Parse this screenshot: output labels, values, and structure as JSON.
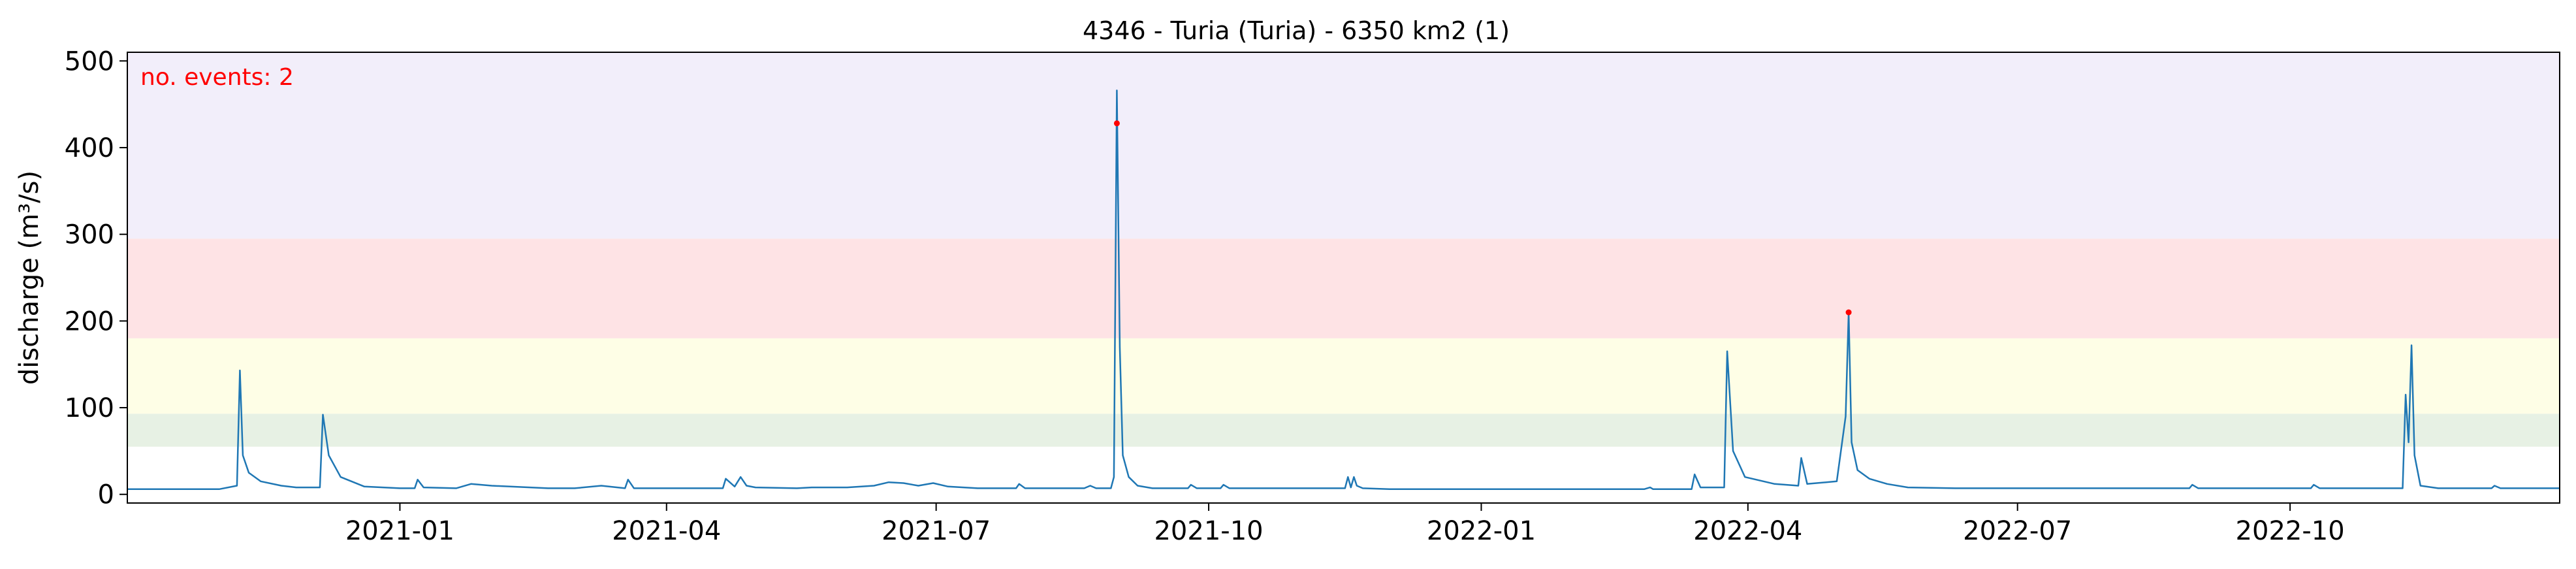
{
  "chart_data": {
    "type": "line",
    "title": "4346 - Turia (Turia) - 6350 km2 (1)",
    "xlabel": "",
    "ylabel": "discharge (m³/s)",
    "annotation": "no. events: 2",
    "xlim": [
      "2020-10-01",
      "2022-12-31"
    ],
    "ylim": [
      -10,
      510
    ],
    "x_ticks": [
      "2021-01",
      "2021-04",
      "2021-07",
      "2021-10",
      "2022-01",
      "2022-04",
      "2022-07",
      "2022-10"
    ],
    "y_ticks": [
      0,
      100,
      200,
      300,
      400,
      500
    ],
    "grid": false,
    "threshold_bands": [
      {
        "from": 55,
        "to": 93,
        "color": "#e7f1e4"
      },
      {
        "from": 93,
        "to": 180,
        "color": "#fefee6"
      },
      {
        "from": 180,
        "to": 295,
        "color": "#fee3e5"
      },
      {
        "from": 295,
        "to": 510,
        "color": "#f2eefa"
      }
    ],
    "series": [
      {
        "color": "#1f77b4",
        "x": [
          "2020-10-01",
          "2020-11-01",
          "2020-11-07",
          "2020-11-08",
          "2020-11-09",
          "2020-11-11",
          "2020-11-15",
          "2020-11-22",
          "2020-11-27",
          "2020-12-05",
          "2020-12-06",
          "2020-12-08",
          "2020-12-12",
          "2020-12-20",
          "2021-01-01",
          "2021-01-06",
          "2021-01-07",
          "2021-01-09",
          "2021-01-20",
          "2021-01-25",
          "2021-02-01",
          "2021-02-20",
          "2021-03-01",
          "2021-03-10",
          "2021-03-18",
          "2021-03-19",
          "2021-03-21",
          "2021-04-15",
          "2021-04-20",
          "2021-04-21",
          "2021-04-24",
          "2021-04-26",
          "2021-04-28",
          "2021-05-01",
          "2021-05-15",
          "2021-05-20",
          "2021-06-01",
          "2021-06-10",
          "2021-06-15",
          "2021-06-20",
          "2021-06-25",
          "2021-06-30",
          "2021-07-05",
          "2021-07-15",
          "2021-07-28",
          "2021-07-29",
          "2021-07-31",
          "2021-08-10",
          "2021-08-20",
          "2021-08-22",
          "2021-08-24",
          "2021-08-29",
          "2021-08-30",
          "2021-08-31",
          "2021-09-01",
          "2021-09-02",
          "2021-09-04",
          "2021-09-07",
          "2021-09-12",
          "2021-09-18",
          "2021-09-24",
          "2021-09-25",
          "2021-09-27",
          "2021-10-05",
          "2021-10-06",
          "2021-10-08",
          "2021-10-15",
          "2021-11-01",
          "2021-11-16",
          "2021-11-17",
          "2021-11-18",
          "2021-11-19",
          "2021-11-20",
          "2021-11-22",
          "2021-12-01",
          "2022-02-25",
          "2022-02-27",
          "2022-02-28",
          "2022-03-02",
          "2022-03-10",
          "2022-03-13",
          "2022-03-14",
          "2022-03-16",
          "2022-03-20",
          "2022-03-24",
          "2022-03-25",
          "2022-03-27",
          "2022-03-31",
          "2022-04-10",
          "2022-04-18",
          "2022-04-19",
          "2022-04-21",
          "2022-05-01",
          "2022-05-04",
          "2022-05-05",
          "2022-05-06",
          "2022-05-08",
          "2022-05-12",
          "2022-05-18",
          "2022-05-25",
          "2022-06-10",
          "2022-07-01",
          "2022-08-28",
          "2022-08-29",
          "2022-08-31",
          "2022-09-30",
          "2022-10-08",
          "2022-10-09",
          "2022-10-11",
          "2022-11-08",
          "2022-11-09",
          "2022-11-10",
          "2022-11-11",
          "2022-11-12",
          "2022-11-14",
          "2022-11-20",
          "2022-12-01",
          "2022-12-08",
          "2022-12-09",
          "2022-12-11",
          "2022-12-31"
        ],
        "y": [
          6,
          6,
          10,
          143,
          45,
          25,
          15,
          10,
          8,
          8,
          92,
          45,
          20,
          9,
          7,
          7,
          17,
          8,
          7,
          12,
          10,
          7,
          7,
          10,
          7,
          17,
          7,
          7,
          7,
          18,
          9,
          20,
          10,
          8,
          7,
          8,
          8,
          10,
          14,
          13,
          10,
          13,
          9,
          7,
          7,
          12,
          7,
          7,
          7,
          10,
          7,
          7,
          20,
          466,
          170,
          45,
          20,
          10,
          7,
          7,
          7,
          11,
          7,
          7,
          11,
          7,
          7,
          7,
          7,
          20,
          8,
          20,
          10,
          7,
          6,
          6,
          8,
          6,
          6,
          6,
          6,
          23,
          8,
          8,
          8,
          165,
          50,
          20,
          12,
          10,
          42,
          12,
          15,
          90,
          210,
          60,
          28,
          18,
          12,
          8,
          7,
          7,
          7,
          11,
          7,
          7,
          7,
          11,
          7,
          7,
          115,
          60,
          172,
          45,
          10,
          7,
          7,
          7,
          10,
          7,
          7
        ]
      }
    ],
    "event_points": [
      {
        "x": "2021-08-31",
        "y": 428
      },
      {
        "x": "2022-05-05",
        "y": 210
      }
    ]
  }
}
